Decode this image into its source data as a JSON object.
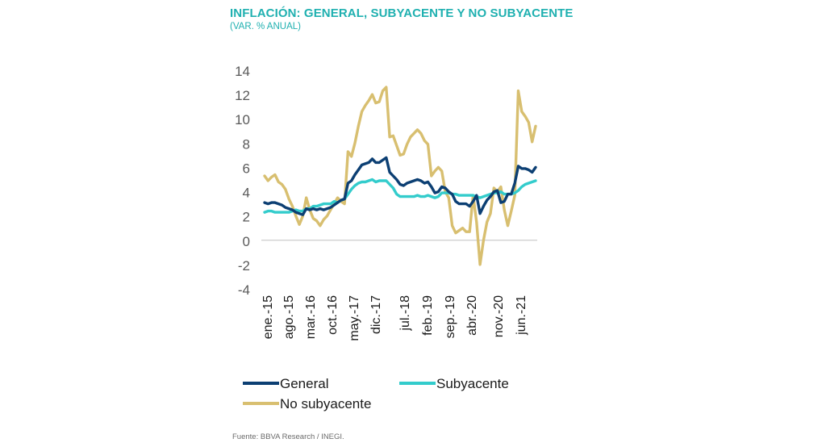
{
  "title": "INFLACIÓN: GENERAL, SUBYACENTE Y NO SUBYACENTE",
  "subtitle": "(VAR. % ANUAL)",
  "source": "Fuente: BBVA Research / INEGI.",
  "chart_data": {
    "type": "line",
    "ylim": [
      -4,
      14
    ],
    "yticks": [
      "14",
      "12",
      "10",
      "8",
      "6",
      "4",
      "2",
      "0",
      "-2",
      "-4"
    ],
    "xtick_labels": [
      "ene.-15",
      "ago.-15",
      "mar.-16",
      "oct.-16",
      "may.-17",
      "dic.-17",
      "jul.-18",
      "feb.-19",
      "sep.-19",
      "abr.-20",
      "nov.-20",
      "jun.-21"
    ],
    "series": [
      {
        "name": "General",
        "color": "#0c3f73",
        "values": [
          3.1,
          3.0,
          3.1,
          3.1,
          3.0,
          2.9,
          2.7,
          2.6,
          2.5,
          2.3,
          2.2,
          2.1,
          2.6,
          2.5,
          2.6,
          2.5,
          2.6,
          2.5,
          2.6,
          2.7,
          2.9,
          3.1,
          3.3,
          3.4,
          4.7,
          4.9,
          5.4,
          5.8,
          6.2,
          6.3,
          6.4,
          6.7,
          6.4,
          6.4,
          6.6,
          6.8,
          5.6,
          5.3,
          5.0,
          4.6,
          4.5,
          4.7,
          4.8,
          4.9,
          5.0,
          4.9,
          4.7,
          4.8,
          4.4,
          3.9,
          4.0,
          4.4,
          4.3,
          4.0,
          3.8,
          3.2,
          3.0,
          3.0,
          3.0,
          2.8,
          3.2,
          3.7,
          2.2,
          2.8,
          3.3,
          3.6,
          4.0,
          4.1,
          3.1,
          3.2,
          3.8,
          3.8,
          4.7,
          6.1,
          5.9,
          5.9,
          5.8,
          5.6,
          6.0
        ]
      },
      {
        "name": "Subyacente",
        "color": "#33cccc",
        "values": [
          2.3,
          2.4,
          2.4,
          2.3,
          2.3,
          2.3,
          2.3,
          2.3,
          2.4,
          2.5,
          2.4,
          2.4,
          2.6,
          2.6,
          2.8,
          2.8,
          2.9,
          3.0,
          3.0,
          3.0,
          3.2,
          3.1,
          3.3,
          3.4,
          3.8,
          4.2,
          4.5,
          4.7,
          4.8,
          4.8,
          4.9,
          5.0,
          4.8,
          4.9,
          4.9,
          4.9,
          4.6,
          4.3,
          3.8,
          3.6,
          3.6,
          3.6,
          3.6,
          3.6,
          3.7,
          3.6,
          3.6,
          3.7,
          3.6,
          3.5,
          3.6,
          3.9,
          3.9,
          3.9,
          3.8,
          3.8,
          3.7,
          3.7,
          3.7,
          3.7,
          3.7,
          3.6,
          3.5,
          3.6,
          3.7,
          3.8,
          3.9,
          3.9,
          4.0,
          3.8,
          3.8,
          3.8,
          3.9,
          4.1,
          4.4,
          4.6,
          4.7,
          4.8,
          4.9
        ]
      },
      {
        "name": "No subyacente",
        "color": "#d8bf70",
        "values": [
          5.3,
          4.9,
          5.2,
          5.4,
          4.8,
          4.6,
          4.2,
          3.4,
          2.8,
          2.0,
          1.3,
          2.0,
          3.5,
          2.5,
          1.8,
          1.6,
          1.2,
          1.7,
          2.0,
          2.5,
          3.0,
          3.5,
          3.2,
          3.0,
          7.3,
          6.9,
          8.0,
          9.4,
          10.6,
          11.1,
          11.5,
          12.0,
          11.3,
          11.4,
          12.3,
          12.6,
          8.5,
          8.6,
          7.8,
          7.0,
          7.1,
          7.9,
          8.5,
          8.8,
          9.1,
          8.8,
          8.2,
          7.9,
          5.3,
          5.7,
          6.0,
          5.7,
          4.0,
          3.5,
          1.2,
          0.6,
          0.8,
          1.0,
          0.7,
          0.7,
          3.7,
          1.5,
          -2.0,
          0.0,
          1.5,
          2.2,
          4.3,
          4.0,
          4.4,
          2.5,
          1.2,
          2.4,
          3.7,
          12.3,
          10.6,
          10.2,
          9.7,
          8.1,
          9.4
        ]
      }
    ],
    "legend_position": "bottom"
  }
}
